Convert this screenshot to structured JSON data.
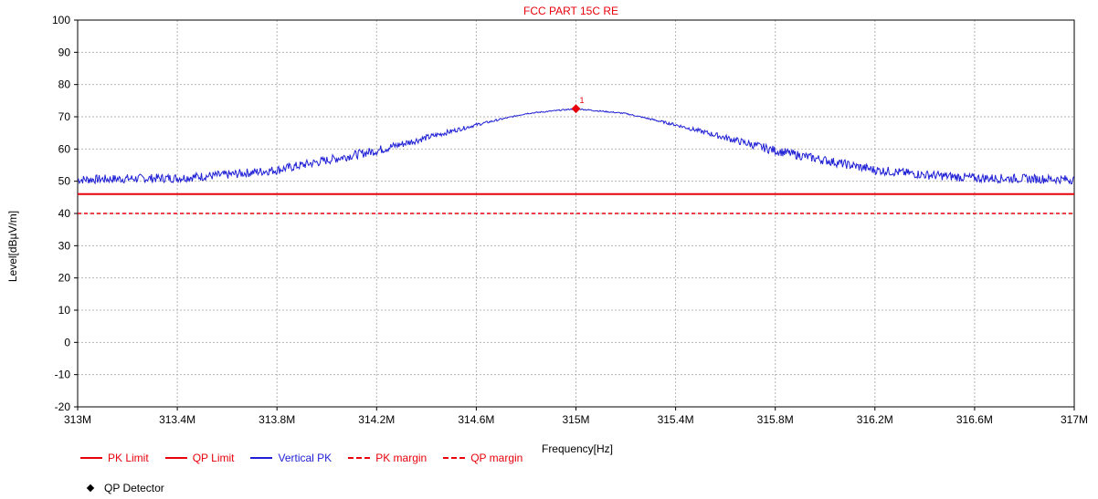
{
  "chart_data": {
    "type": "line",
    "title": "FCC PART 15C RE",
    "xlabel": "Frequency[Hz]",
    "ylabel": "Level[dBµV/m]",
    "xlim": [
      313,
      317
    ],
    "ylim": [
      -20,
      100
    ],
    "x_ticks": [
      "313M",
      "313.4M",
      "313.8M",
      "314.2M",
      "314.6M",
      "315M",
      "315.4M",
      "315.8M",
      "316.2M",
      "316.6M",
      "317M"
    ],
    "y_ticks": [
      "100",
      "90",
      "80",
      "70",
      "60",
      "50",
      "40",
      "30",
      "20",
      "10",
      "0",
      "-10",
      "-20"
    ],
    "grid": true,
    "legend_position": "bottom",
    "series": [
      {
        "name": "PK Limit",
        "color": "#e8000b",
        "style": "solid",
        "x": [
          313,
          317
        ],
        "y": [
          46,
          46
        ]
      },
      {
        "name": "QP Limit",
        "color": "#e8000b",
        "style": "solid",
        "x": [],
        "y": []
      },
      {
        "name": "Vertical PK",
        "color": "#1f1fd6",
        "style": "solid",
        "x": [
          313.0,
          313.2,
          313.4,
          313.6,
          313.8,
          314.0,
          314.2,
          314.4,
          314.6,
          314.8,
          315.0,
          315.2,
          315.4,
          315.6,
          315.8,
          316.0,
          316.2,
          316.4,
          316.6,
          316.8,
          317.0
        ],
        "y": [
          50.5,
          50.8,
          51.0,
          52.0,
          53.5,
          56.5,
          59.5,
          63.5,
          67.5,
          71.0,
          72.5,
          71.0,
          67.5,
          63.5,
          59.5,
          56.5,
          53.5,
          52.0,
          51.0,
          50.8,
          50.5
        ]
      },
      {
        "name": "PK margin",
        "color": "#e8000b",
        "style": "dashed",
        "x": [
          313,
          317
        ],
        "y": [
          40,
          40
        ]
      },
      {
        "name": "QP margin",
        "color": "#e8000b",
        "style": "dashed",
        "x": [],
        "y": []
      }
    ],
    "markers": [
      {
        "label": "1",
        "x": 315.0,
        "y": 72.5
      }
    ],
    "detector_legend": "QP Detector"
  }
}
